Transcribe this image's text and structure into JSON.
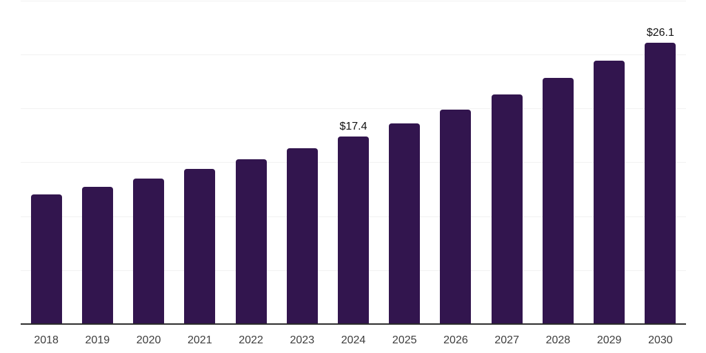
{
  "chart_data": {
    "type": "bar",
    "title": "",
    "xlabel": "",
    "ylabel": "",
    "categories": [
      "2018",
      "2019",
      "2020",
      "2021",
      "2022",
      "2023",
      "2024",
      "2025",
      "2026",
      "2027",
      "2028",
      "2029",
      "2030"
    ],
    "values": [
      12.0,
      12.7,
      13.5,
      14.4,
      15.3,
      16.3,
      17.4,
      18.6,
      19.9,
      21.3,
      22.8,
      24.4,
      26.1
    ],
    "data_labels": {
      "2024": "$17.4",
      "2030": "$26.1"
    },
    "ylim": [
      0,
      30
    ],
    "grid_step": 5,
    "grid": "horizontal-only",
    "y_tick_labels": "none",
    "legend": "none",
    "colors": {
      "bar": "#32154e",
      "gridline": "#f1f1f1",
      "axis_line": "#2b2b2b",
      "tick_label": "#3d3d3d",
      "data_label": "#111111",
      "background": "#ffffff"
    }
  }
}
